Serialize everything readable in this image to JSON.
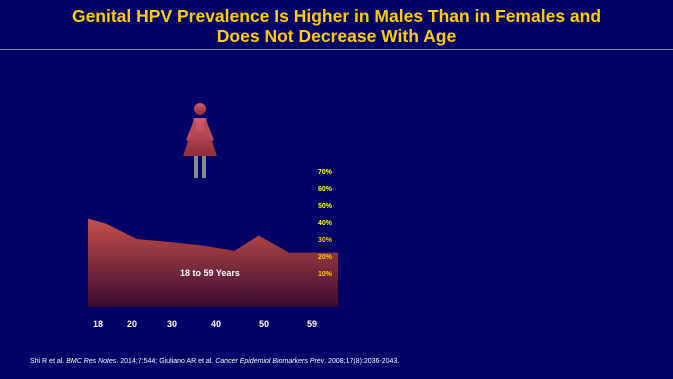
{
  "slide": {
    "title_line1": "Genital HPV Prevalence Is Higher in Males Than in Females and",
    "title_line2": "Does Not Decrease With Age"
  },
  "citation": {
    "part1": "Shi R et al. ",
    "journal1": "BMC Res Notes",
    "part2": ". 2014;7:544; Giuliano AR et al. ",
    "journal2": "Cancer Epidemiol Biomarkers Prev",
    "part3": ". 2008;17(8):2036-2043."
  },
  "icons": {
    "female_figure": "female-silhouette-icon"
  },
  "colors": {
    "background": "#000066",
    "title": "#FFCC00",
    "area_top": "#c8504a",
    "area_bottom": "#3a0a30",
    "tick_text": "#ffffff",
    "percent_text_upper": "#FFFF00",
    "percent_text_lower": "#FFCC00"
  },
  "chart_data": {
    "type": "area",
    "title": "",
    "xlabel": "",
    "ylabel": "",
    "annotation": "18 to 59 Years",
    "x_tick_labels": [
      "18",
      "20",
      "30",
      "40",
      "50",
      "59"
    ],
    "y_tick_labels": [
      "10%",
      "20%",
      "30%",
      "40%",
      "50%",
      "60%",
      "70%"
    ],
    "ylim": [
      0,
      70
    ],
    "grid": false,
    "series": [
      {
        "x": [
          18,
          21,
          26,
          32,
          37,
          42,
          46,
          51,
          59
        ],
        "values": [
          52,
          49,
          40,
          38,
          36,
          33,
          42,
          32,
          32
        ]
      }
    ]
  }
}
